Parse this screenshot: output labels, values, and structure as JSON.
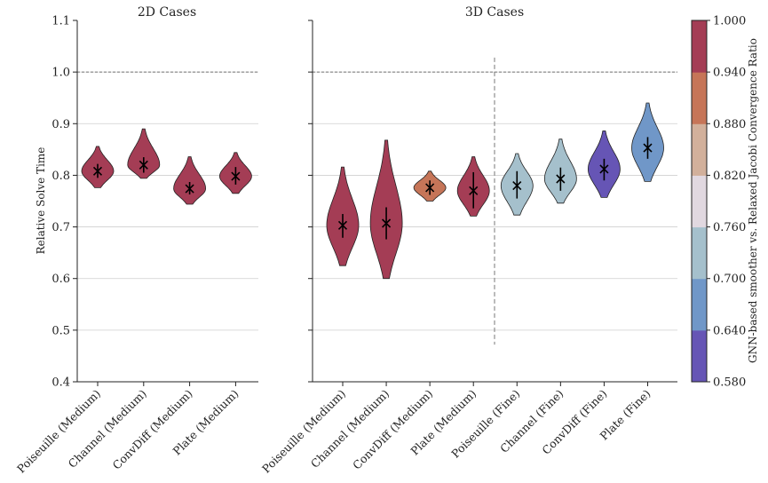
{
  "chart_data": {
    "type": "violin",
    "ylabel": "Relative Solve Time",
    "ylim": [
      0.4,
      1.1
    ],
    "yticks": [
      "0.4",
      "0.5",
      "0.6",
      "0.7",
      "0.8",
      "0.9",
      "1.0",
      "1.1"
    ],
    "reference_line": 1.0,
    "grid": "horizontal",
    "colorbar": {
      "label": "GNN-based smoother vs. Relaxed Jacobi Convergence Ratio",
      "ticks": [
        "0.580",
        "0.640",
        "0.700",
        "0.760",
        "0.820",
        "0.880",
        "0.940",
        "1.000"
      ],
      "colors": [
        "#6655b5",
        "#7097c8",
        "#a5c0cc",
        "#e1d8e0",
        "#d2b09b",
        "#c67558",
        "#a43d55"
      ]
    },
    "panels": [
      {
        "title": "2D Cases",
        "violins": [
          {
            "label": "Poiseuille (Medium)",
            "mean": 0.808,
            "min": 0.776,
            "max": 0.856,
            "p_low": 0.795,
            "p_high": 0.822,
            "color": "#a43d55"
          },
          {
            "label": "Channel (Medium)",
            "mean": 0.82,
            "min": 0.794,
            "max": 0.89,
            "p_low": 0.805,
            "p_high": 0.835,
            "color": "#a43d55"
          },
          {
            "label": "ConvDiff (Medium)",
            "mean": 0.774,
            "min": 0.744,
            "max": 0.836,
            "p_low": 0.763,
            "p_high": 0.787,
            "color": "#a43d55"
          },
          {
            "label": "Plate (Medium)",
            "mean": 0.798,
            "min": 0.765,
            "max": 0.844,
            "p_low": 0.782,
            "p_high": 0.816,
            "color": "#a43d55"
          }
        ]
      },
      {
        "title": "3D Cases",
        "violins": [
          {
            "label": "Poiseuille (Medium)",
            "mean": 0.703,
            "min": 0.625,
            "max": 0.816,
            "p_low": 0.679,
            "p_high": 0.725,
            "color": "#a43d55"
          },
          {
            "label": "Channel (Medium)",
            "mean": 0.707,
            "min": 0.6,
            "max": 0.868,
            "p_low": 0.676,
            "p_high": 0.738,
            "color": "#a43d55"
          },
          {
            "label": "ConvDiff (Medium)",
            "mean": 0.776,
            "min": 0.75,
            "max": 0.808,
            "p_low": 0.762,
            "p_high": 0.79,
            "color": "#c67558"
          },
          {
            "label": "Plate (Medium)",
            "mean": 0.77,
            "min": 0.721,
            "max": 0.836,
            "p_low": 0.736,
            "p_high": 0.806,
            "color": "#a43d55"
          },
          {
            "label": "Poiseuille (Fine)",
            "mean": 0.78,
            "min": 0.723,
            "max": 0.842,
            "p_low": 0.755,
            "p_high": 0.808,
            "color": "#a5c0cc"
          },
          {
            "label": "Channel (Fine)",
            "mean": 0.793,
            "min": 0.746,
            "max": 0.87,
            "p_low": 0.77,
            "p_high": 0.815,
            "color": "#a5c0cc"
          },
          {
            "label": "ConvDiff (Fine)",
            "mean": 0.812,
            "min": 0.757,
            "max": 0.886,
            "p_low": 0.79,
            "p_high": 0.832,
            "color": "#6655b5"
          },
          {
            "label": "Plate (Fine)",
            "mean": 0.853,
            "min": 0.788,
            "max": 0.94,
            "p_low": 0.832,
            "p_high": 0.874,
            "color": "#7097c8"
          }
        ]
      }
    ]
  }
}
